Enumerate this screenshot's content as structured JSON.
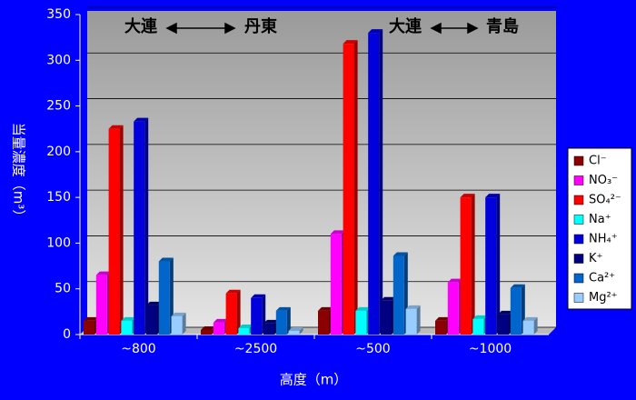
{
  "chart_data": {
    "type": "bar3d",
    "x_label": "高度（m）",
    "y_label": "当量濃度（m³）",
    "annotations": [
      "大連",
      "丹東",
      "大連",
      "青島"
    ],
    "categories": [
      "~800",
      "~2500",
      "~500",
      "~1000"
    ],
    "series": [
      {
        "name": "Cl⁻",
        "color": "#8b0000",
        "values": [
          15,
          5,
          26,
          15
        ]
      },
      {
        "name": "NO₃⁻",
        "color": "#ff00ff",
        "values": [
          65,
          13,
          110,
          57
        ]
      },
      {
        "name": "SO₄²⁻",
        "color": "#ff0000",
        "values": [
          225,
          45,
          318,
          150
        ]
      },
      {
        "name": "Na⁺",
        "color": "#00ffff",
        "values": [
          15,
          7,
          26,
          17
        ]
      },
      {
        "name": "NH₄⁺",
        "color": "#0000dd",
        "values": [
          233,
          40,
          330,
          150
        ]
      },
      {
        "name": "K⁺",
        "color": "#000080",
        "values": [
          32,
          12,
          37,
          22
        ]
      },
      {
        "name": "Ca²⁺",
        "color": "#0066cc",
        "values": [
          80,
          26,
          86,
          51
        ]
      },
      {
        "name": "Mg²⁺",
        "color": "#99ccff",
        "values": [
          20,
          4,
          28,
          15
        ]
      }
    ],
    "ylim": [
      0,
      350
    ],
    "yticks": [
      0,
      50,
      100,
      150,
      200,
      250,
      300,
      350
    ],
    "grid": true
  }
}
